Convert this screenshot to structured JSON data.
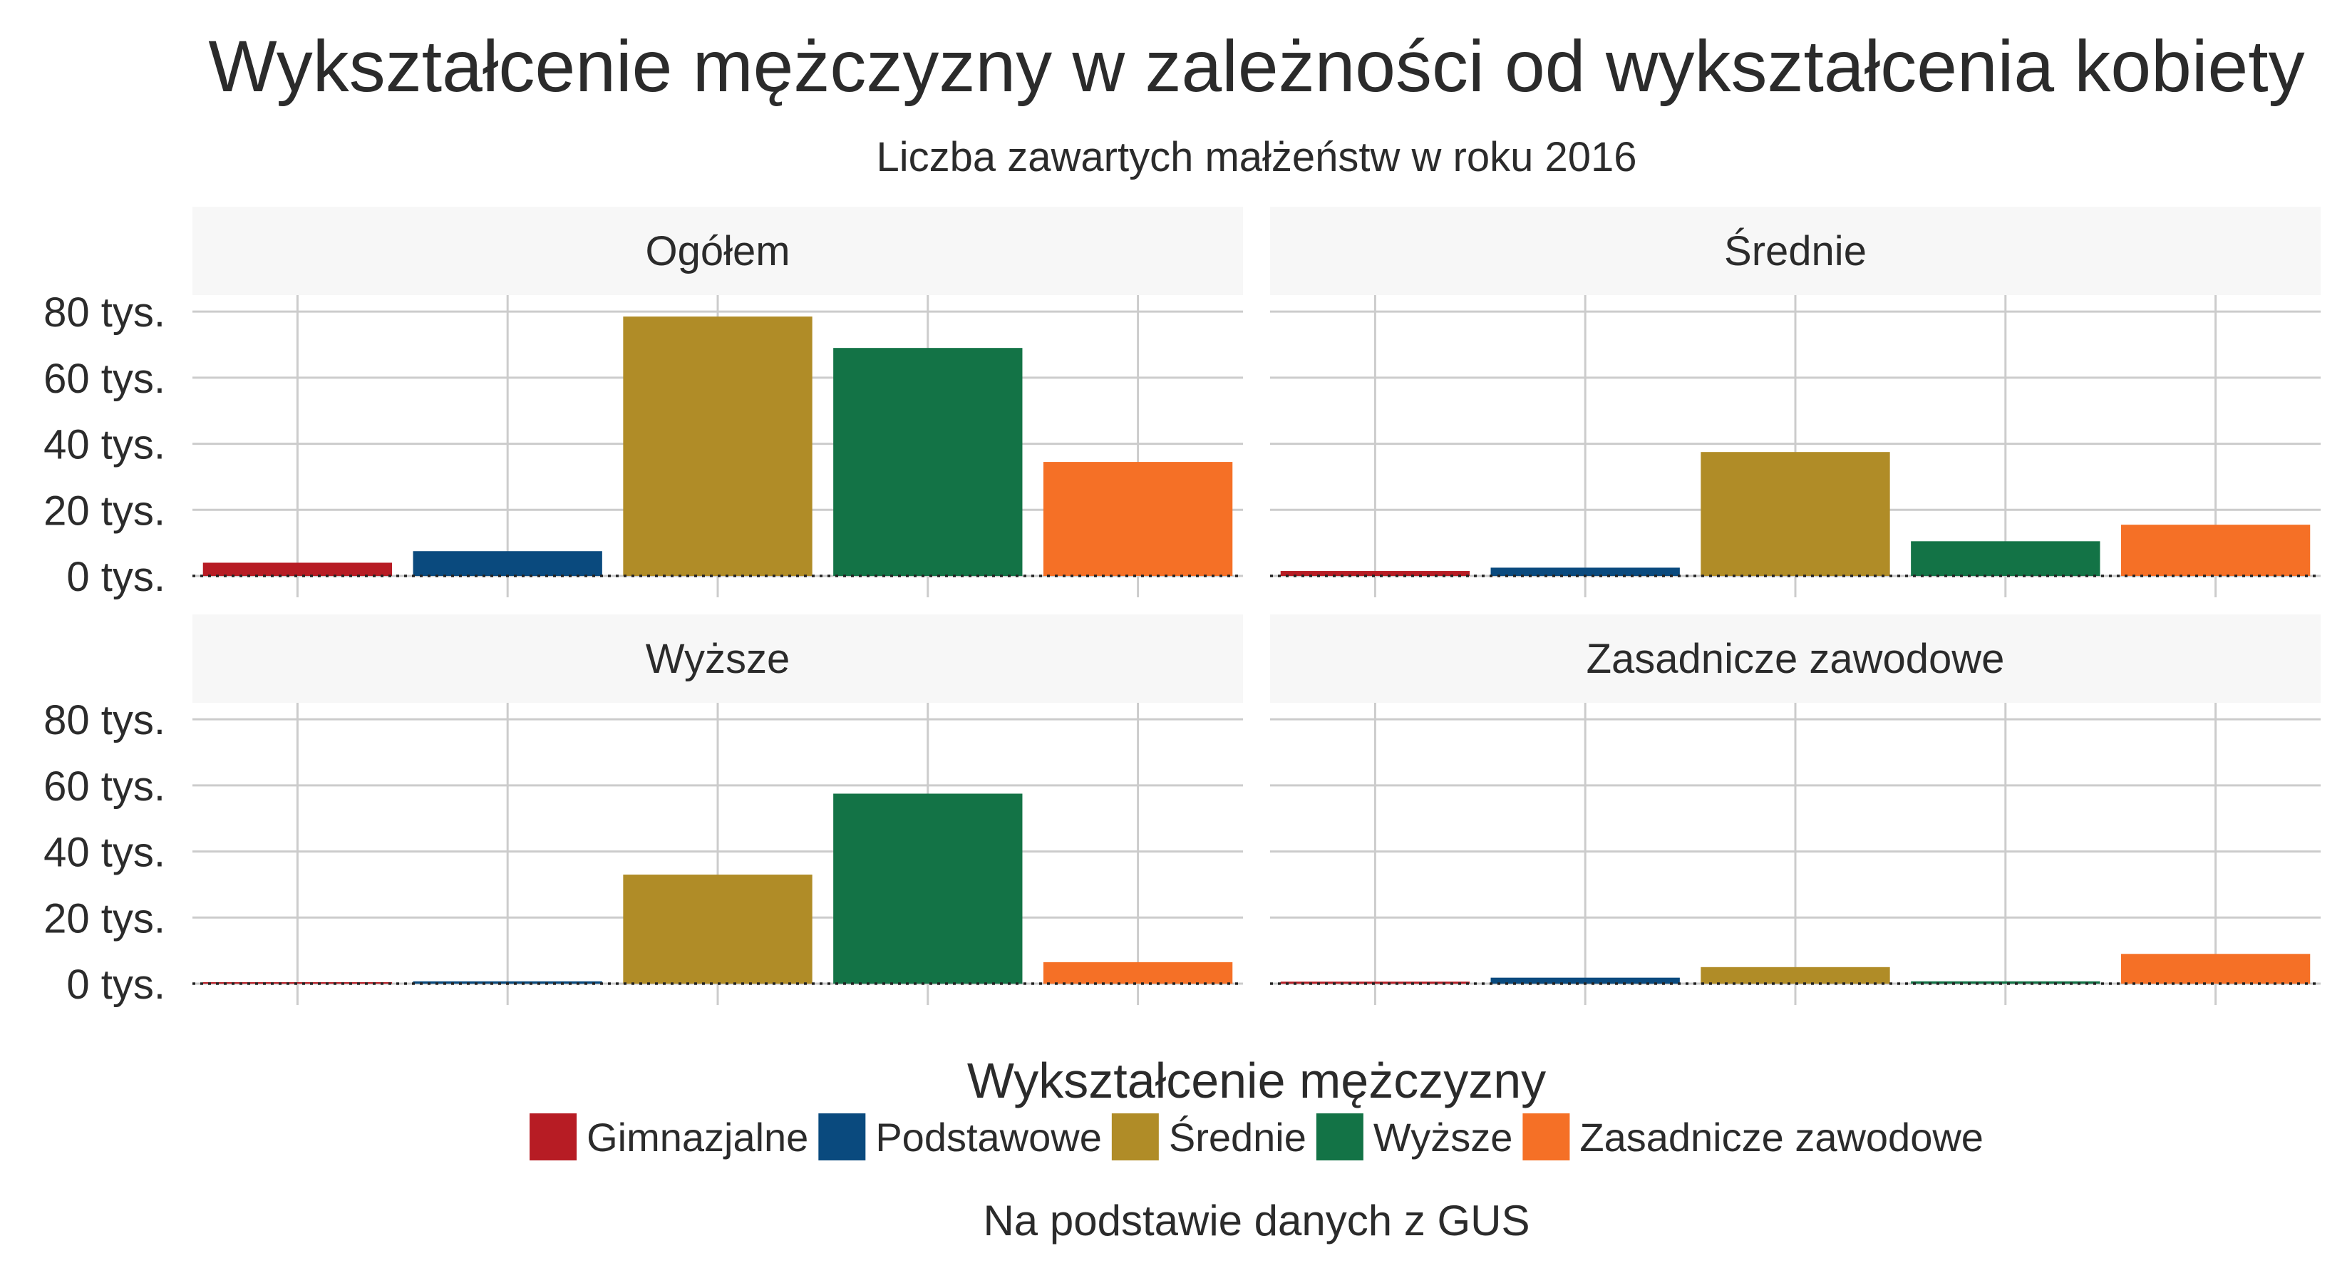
{
  "title": "Wykształcenie mężczyzny w zależności od wykształcenia kobiety",
  "subtitle": "Liczba zawartych małżeństw w roku 2016",
  "caption": "Na podstawie danych z GUS",
  "legend_title": "Wykształcenie mężczyzny",
  "chart_data": {
    "type": "bar",
    "facet_layout": "2x2",
    "categories": [
      "Gimnazjalne",
      "Podstawowe",
      "Średnie",
      "Wyższe",
      "Zasadnicze zawodowe"
    ],
    "colors": {
      "Gimnazjalne": "#B71C24",
      "Podstawowe": "#0A4A7E",
      "Średnie": "#B08C27",
      "Wyższe": "#137346",
      "Zasadnicze zawodowe": "#F57026"
    },
    "ylim": [
      0,
      85000
    ],
    "y_ticks": [
      0,
      20000,
      40000,
      60000,
      80000
    ],
    "y_tick_labels": [
      "0 tys.",
      "20 tys.",
      "40 tys.",
      "60 tys.",
      "80 tys."
    ],
    "grid": true,
    "legend_position": "bottom",
    "panels": [
      {
        "label": "Ogółem",
        "values": [
          4000,
          7500,
          78500,
          69000,
          34500
        ]
      },
      {
        "label": "Średnie",
        "values": [
          1500,
          2500,
          37500,
          10500,
          15500
        ]
      },
      {
        "label": "Wyższe",
        "values": [
          300,
          700,
          33000,
          57500,
          6500
        ]
      },
      {
        "label": "Zasadnicze zawodowe",
        "values": [
          600,
          1800,
          5000,
          700,
          9000
        ]
      }
    ]
  }
}
